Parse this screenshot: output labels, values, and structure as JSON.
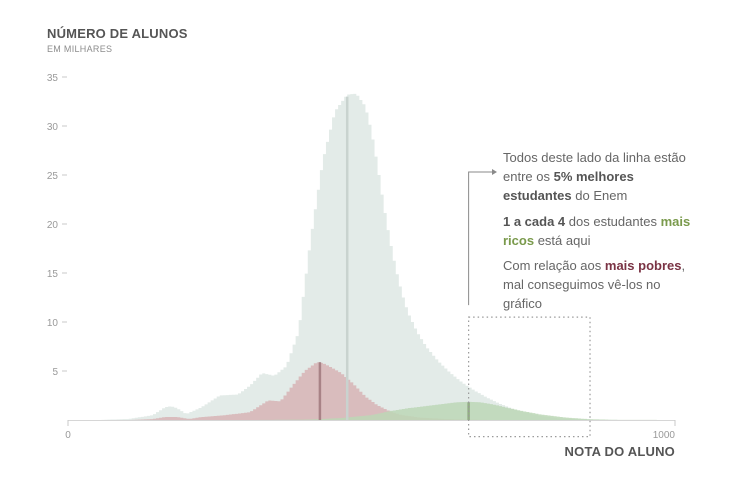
{
  "chart_data": {
    "type": "area",
    "ylabel": "NÚMERO DE ALUNOS",
    "ylabel_sub": "EM MILHARES",
    "xlabel": "NOTA DO ALUNO",
    "ylim": [
      0,
      35
    ],
    "xlim": [
      0,
      1000
    ],
    "yticks": [
      "5",
      "10",
      "15",
      "20",
      "25",
      "30",
      "35"
    ],
    "xticks": [
      "0",
      "1000"
    ],
    "series": [
      {
        "color": "#e3ebe8",
        "x": [
          0,
          50,
          100,
          140,
          160,
          170,
          180,
          195,
          220,
          250,
          280,
          300,
          320,
          340,
          360,
          380,
          400,
          420,
          440,
          460,
          475,
          490,
          500,
          510,
          520,
          530,
          540,
          550,
          560,
          575,
          590,
          610,
          630,
          650,
          670,
          690,
          710,
          730,
          750,
          780,
          810,
          850,
          900,
          1000
        ],
        "y": [
          0,
          0,
          0.1,
          0.5,
          1.3,
          1.4,
          1.2,
          0.6,
          1.3,
          2.5,
          2.6,
          3.5,
          4.8,
          4.5,
          5.5,
          9.0,
          18.5,
          26.5,
          31.5,
          33.2,
          33.3,
          32.0,
          29.5,
          26.0,
          22.0,
          18.5,
          15.5,
          13.0,
          11.0,
          9.0,
          7.5,
          6.0,
          4.8,
          3.8,
          3.0,
          2.3,
          1.7,
          1.2,
          0.8,
          0.4,
          0.15,
          0.05,
          0,
          0
        ]
      },
      {
        "color": "#d7b4b5",
        "x": [
          0,
          100,
          140,
          160,
          180,
          200,
          220,
          260,
          300,
          330,
          350,
          370,
          390,
          410,
          420,
          430,
          450,
          470,
          490,
          510,
          530,
          550,
          580,
          620,
          660,
          700,
          1000
        ],
        "y": [
          0,
          0,
          0.1,
          0.3,
          0.3,
          0.1,
          0.3,
          0.5,
          0.8,
          2.0,
          1.9,
          3.5,
          5.0,
          5.9,
          5.8,
          5.5,
          4.8,
          3.7,
          2.4,
          1.5,
          0.9,
          0.5,
          0.25,
          0.1,
          0.03,
          0,
          0
        ]
      },
      {
        "color": "#bcd7b6",
        "x": [
          0,
          300,
          400,
          450,
          500,
          530,
          560,
          600,
          640,
          660,
          680,
          700,
          720,
          750,
          780,
          820,
          860,
          900,
          1000
        ],
        "y": [
          0,
          0,
          0.05,
          0.2,
          0.5,
          0.9,
          1.2,
          1.5,
          1.8,
          1.85,
          1.8,
          1.6,
          1.3,
          0.9,
          0.55,
          0.25,
          0.08,
          0.02,
          0
        ]
      }
    ],
    "reference_lines": [
      {
        "x": 460,
        "ymax": 33,
        "color": "#c9d3cf"
      },
      {
        "x": 415,
        "ymax": 5.9,
        "color": "#a88286"
      },
      {
        "x": 660,
        "ymax": 1.8,
        "color": "#93ad85"
      }
    ],
    "highlight_box": {
      "x0": 660,
      "x1": 860,
      "y0": -1.7,
      "y1": 10.5
    },
    "annotations": [
      {
        "segments": [
          {
            "text": "Todos deste lado da linha estão entre os ",
            "style": "normal"
          },
          {
            "text": "5% melhores estudantes",
            "style": "bold-dark"
          },
          {
            "text": " do Enem",
            "style": "normal"
          }
        ]
      },
      {
        "segments": [
          {
            "text": "1 a cada 4",
            "style": "bold-dark"
          },
          {
            "text": " dos estudantes ",
            "style": "normal"
          },
          {
            "text": "mais ricos",
            "style": "bold-green"
          },
          {
            "text": " está aqui",
            "style": "normal"
          }
        ]
      },
      {
        "segments": [
          {
            "text": "Com relação aos ",
            "style": "normal"
          },
          {
            "text": "mais pobres",
            "style": "bold-red"
          },
          {
            "text": ", mal conseguimos vê-los no gráfico",
            "style": "normal"
          }
        ]
      }
    ]
  }
}
